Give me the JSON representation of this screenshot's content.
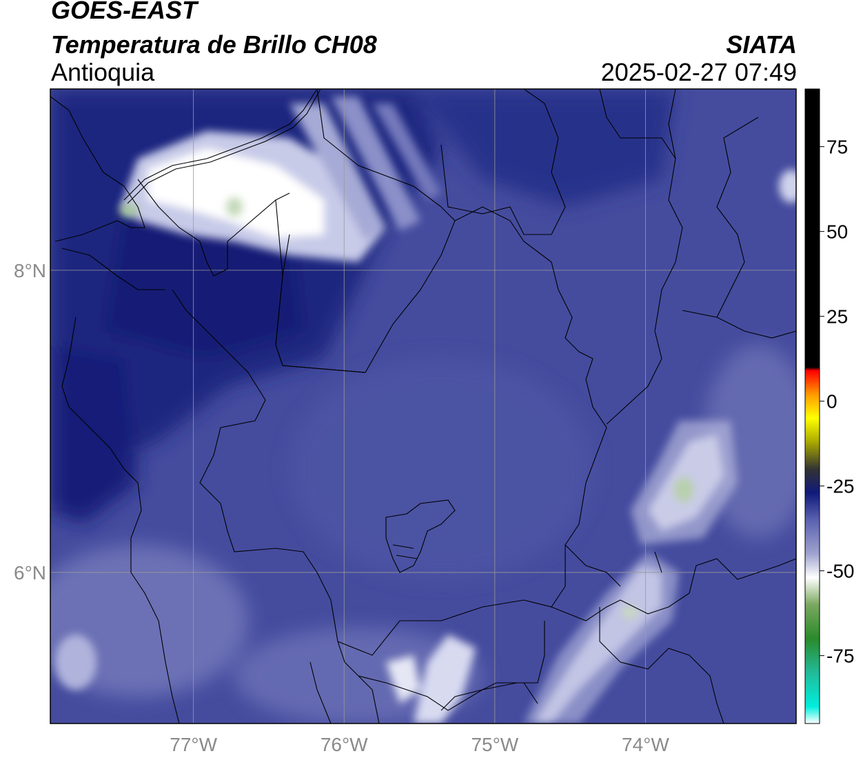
{
  "header": {
    "line1": "GOES-EAST",
    "line2": "Temperatura de Brillo CH08",
    "line3": "Antioquia",
    "organization": "SIATA",
    "timestamp": "2025-02-27 07:49"
  },
  "map": {
    "lon_ticks": [
      {
        "value": -77,
        "label": "77°W"
      },
      {
        "value": -76,
        "label": "76°W"
      },
      {
        "value": -75,
        "label": "75°W"
      },
      {
        "value": -74,
        "label": "74°W"
      }
    ],
    "lat_ticks": [
      {
        "value": 8,
        "label": "8°N"
      },
      {
        "value": 6,
        "label": "6°N"
      }
    ],
    "extent": {
      "lon_min": -77.95,
      "lon_max": -73.0,
      "lat_min": 5.0,
      "lat_max": 9.2
    },
    "gridlines": true,
    "background_color": "#454c9e"
  },
  "colorbar": {
    "range": [
      -95,
      92
    ],
    "ticks": [
      {
        "value": 75,
        "label": "75"
      },
      {
        "value": 50,
        "label": "50"
      },
      {
        "value": 25,
        "label": "25"
      },
      {
        "value": 0,
        "label": "0"
      },
      {
        "value": -25,
        "label": "-25"
      },
      {
        "value": -50,
        "label": "-50"
      },
      {
        "value": -75,
        "label": "-75"
      }
    ],
    "stops": [
      {
        "value": -95,
        "color": "#ffffff"
      },
      {
        "value": -90,
        "color": "#00eedd"
      },
      {
        "value": -80,
        "color": "#22bb99"
      },
      {
        "value": -70,
        "color": "#2a8a2a"
      },
      {
        "value": -60,
        "color": "#7aa860"
      },
      {
        "value": -52,
        "color": "#ffffff"
      },
      {
        "value": -45,
        "color": "#9fa3cf"
      },
      {
        "value": -35,
        "color": "#5a61b0"
      },
      {
        "value": -27,
        "color": "#101a7a"
      },
      {
        "value": -20,
        "color": "#333333"
      },
      {
        "value": -12,
        "color": "#aaaa00"
      },
      {
        "value": -5,
        "color": "#ffff00"
      },
      {
        "value": 2,
        "color": "#ff9900"
      },
      {
        "value": 9,
        "color": "#ff0000"
      },
      {
        "value": 10,
        "color": "#000000"
      },
      {
        "value": 92,
        "color": "#000000"
      }
    ]
  }
}
